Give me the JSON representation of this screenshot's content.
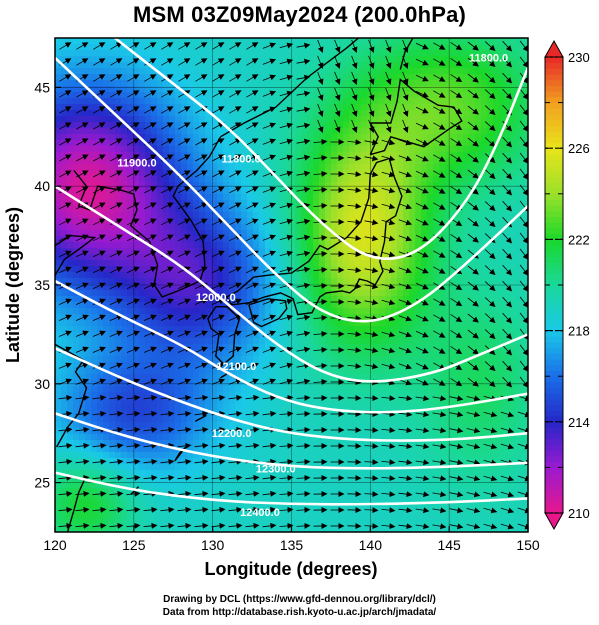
{
  "title": "MSM 03Z09May2024 (200.0hPa)",
  "credits": {
    "line1": "Drawing by DCL (https://www.gfd-dennou.org/library/dcl/)",
    "line2": "Data from http://database.rish.kyoto-u.ac.jp/arch/jmadata/"
  },
  "chart_data": {
    "type": "heatmap",
    "description_kind": "map with filled temperature shading, height contours and wind vectors",
    "xlabel": "Longitude (degrees)",
    "ylabel": "Latitude  (degrees)",
    "xlim": [
      120,
      150
    ],
    "ylim": [
      22.5,
      47.5
    ],
    "x_ticks": [
      120,
      125,
      130,
      135,
      140,
      145,
      150
    ],
    "y_ticks": [
      25,
      30,
      35,
      40,
      45
    ],
    "grid": true,
    "colorbar": {
      "range": [
        210,
        230
      ],
      "tick_labels": [
        210,
        214,
        218,
        222,
        226,
        230
      ],
      "stops": [
        {
          "v": 210,
          "c": "#e8188c"
        },
        {
          "v": 212,
          "c": "#9a1ad0"
        },
        {
          "v": 214,
          "c": "#2626c8"
        },
        {
          "v": 216,
          "c": "#1a6ee8"
        },
        {
          "v": 218,
          "c": "#1ac8e8"
        },
        {
          "v": 220,
          "c": "#1ad89a"
        },
        {
          "v": 222,
          "c": "#1ad82a"
        },
        {
          "v": 224,
          "c": "#9ae02a"
        },
        {
          "v": 226,
          "c": "#e8e41a"
        },
        {
          "v": 228,
          "c": "#f0a020"
        },
        {
          "v": 230,
          "c": "#e82828"
        }
      ]
    },
    "contours": [
      {
        "label": "11800.0",
        "points": [
          [
            123,
            48
          ],
          [
            127,
            45.5
          ],
          [
            131,
            43
          ],
          [
            134,
            40.5
          ],
          [
            137,
            38
          ],
          [
            140,
            36.2
          ],
          [
            143,
            36.5
          ],
          [
            146,
            39
          ],
          [
            148,
            42
          ],
          [
            150,
            46
          ]
        ]
      },
      {
        "label": "11900.0",
        "points": [
          [
            120,
            46.5
          ],
          [
            124,
            43.5
          ],
          [
            128,
            40.5
          ],
          [
            131,
            38
          ],
          [
            134,
            35.5
          ],
          [
            137,
            33.5
          ],
          [
            140,
            33
          ],
          [
            143,
            34
          ],
          [
            146,
            36
          ],
          [
            150,
            39
          ]
        ]
      },
      {
        "label": "12000.0",
        "points": [
          [
            120,
            40
          ],
          [
            124,
            38
          ],
          [
            128,
            36
          ],
          [
            131,
            34
          ],
          [
            134,
            32
          ],
          [
            137,
            30.5
          ],
          [
            140,
            30
          ],
          [
            144,
            30.5
          ],
          [
            147,
            31.5
          ],
          [
            150,
            32.5
          ]
        ]
      },
      {
        "label": "12100.0",
        "points": [
          [
            120,
            35.2
          ],
          [
            124,
            33.5
          ],
          [
            128,
            32
          ],
          [
            131,
            30.5
          ],
          [
            134,
            29.3
          ],
          [
            137,
            28.7
          ],
          [
            141,
            28.5
          ],
          [
            145,
            28.8
          ],
          [
            150,
            29.5
          ]
        ]
      },
      {
        "label": "12200.0",
        "points": [
          [
            120,
            31.8
          ],
          [
            125,
            30
          ],
          [
            130,
            28.5
          ],
          [
            134,
            27.6
          ],
          [
            138,
            27.2
          ],
          [
            142,
            27.1
          ],
          [
            146,
            27.2
          ],
          [
            150,
            27.5
          ]
        ]
      },
      {
        "label": "12300.0",
        "points": [
          [
            120,
            28.5
          ],
          [
            125,
            27.2
          ],
          [
            130,
            26.3
          ],
          [
            135,
            25.8
          ],
          [
            140,
            25.7
          ],
          [
            145,
            25.8
          ],
          [
            150,
            26
          ]
        ]
      },
      {
        "label": "12400.0",
        "points": [
          [
            120,
            25.5
          ],
          [
            125,
            24.6
          ],
          [
            130,
            24.1
          ],
          [
            135,
            23.9
          ],
          [
            140,
            23.9
          ],
          [
            145,
            24
          ],
          [
            150,
            24.2
          ]
        ]
      }
    ],
    "contour_labels": [
      {
        "text": "11800.0",
        "x": 147.5,
        "y": 46.3
      },
      {
        "text": "11800.0",
        "x": 131.8,
        "y": 41.2
      },
      {
        "text": "11900.0",
        "x": 125.2,
        "y": 41.0
      },
      {
        "text": "12000.0",
        "x": 130.2,
        "y": 34.2
      },
      {
        "text": "12100.0",
        "x": 131.5,
        "y": 30.7
      },
      {
        "text": "12200.0",
        "x": 131.2,
        "y": 27.3
      },
      {
        "text": "12300.0",
        "x": 134.0,
        "y": 25.5
      },
      {
        "text": "12400.0",
        "x": 133.0,
        "y": 23.3
      }
    ]
  }
}
